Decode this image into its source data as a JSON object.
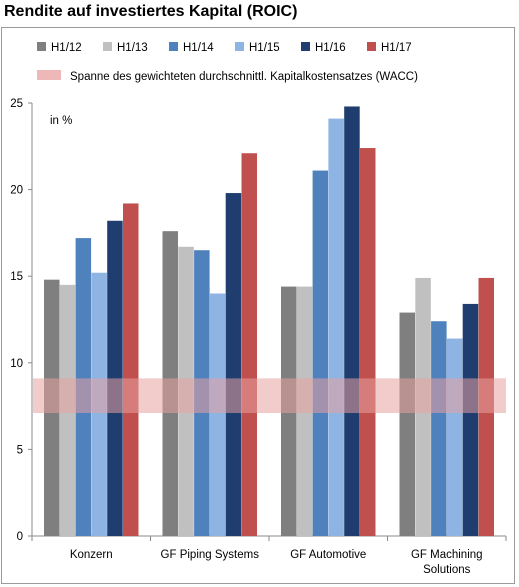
{
  "title": "Rendite auf investiertes Kapital (ROIC)",
  "chart_data": {
    "type": "bar",
    "categories": [
      "Konzern",
      "GF Piping Systems",
      "GF Automotive",
      "GF Machining Solutions"
    ],
    "series": [
      {
        "name": "H1/12",
        "color": "#7f7f7f",
        "values": [
          14.8,
          17.6,
          14.4,
          12.9
        ]
      },
      {
        "name": "H1/13",
        "color": "#c0c0c0",
        "values": [
          14.5,
          16.7,
          14.4,
          14.9
        ]
      },
      {
        "name": "H1/14",
        "color": "#4f81bd",
        "values": [
          17.2,
          16.5,
          21.1,
          12.4
        ]
      },
      {
        "name": "H1/15",
        "color": "#8db4e2",
        "values": [
          15.2,
          14.0,
          24.1,
          11.4
        ]
      },
      {
        "name": "H1/16",
        "color": "#1f3d6e",
        "values": [
          18.2,
          19.8,
          24.8,
          13.4
        ]
      },
      {
        "name": "H1/17",
        "color": "#c0504d",
        "values": [
          19.2,
          22.1,
          22.4,
          14.9
        ]
      }
    ],
    "band": {
      "label": "Spanne des gewichteten durchschnittl. Kapitalkostensatzes (WACC)",
      "from": 7.1,
      "to": 9.1,
      "color": "#e8a0a0"
    },
    "unit_label": "in %",
    "ylim": [
      0,
      25
    ],
    "yticks": [
      0,
      5,
      10,
      15,
      20,
      25
    ],
    "xlabel": "",
    "ylabel": "",
    "grid": false,
    "legend": "top"
  }
}
